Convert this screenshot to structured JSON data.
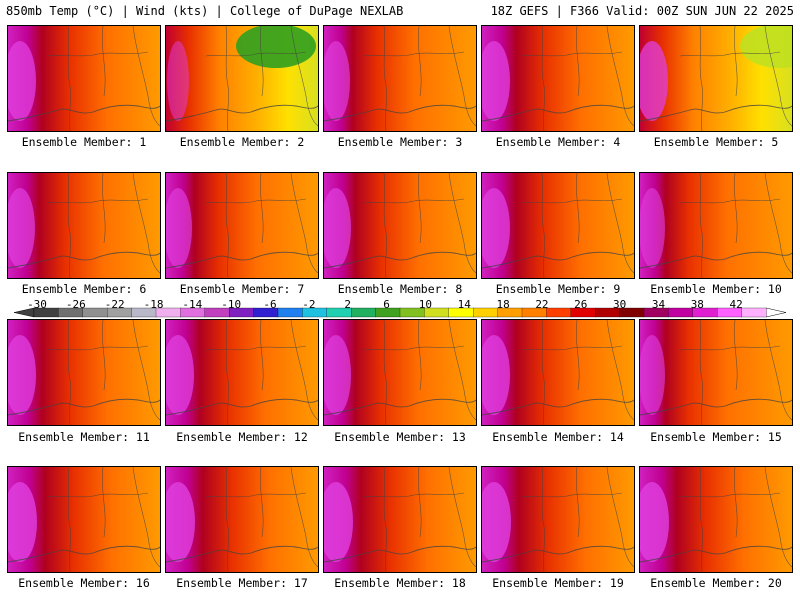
{
  "header": {
    "left": "850mb Temp (°C) | Wind (kts) | College of DuPage NEXLAB",
    "right": "18Z GEFS | F366 Valid: 00Z SUN JUN 22 2025"
  },
  "members": [
    {
      "label": "Ensemble Member: 1",
      "hot": 0.8,
      "cool": 0.0
    },
    {
      "label": "Ensemble Member: 2",
      "hot": 0.3,
      "cool": 0.9
    },
    {
      "label": "Ensemble Member: 3",
      "hot": 0.6,
      "cool": 0.0
    },
    {
      "label": "Ensemble Member: 4",
      "hot": 0.8,
      "cool": 0.0
    },
    {
      "label": "Ensemble Member: 5",
      "hot": 0.8,
      "cool": 0.7
    },
    {
      "label": "Ensemble Member: 6",
      "hot": 0.7,
      "cool": 0.0
    },
    {
      "label": "Ensemble Member: 7",
      "hot": 0.6,
      "cool": 0.0
    },
    {
      "label": "Ensemble Member: 8",
      "hot": 0.7,
      "cool": 0.0
    },
    {
      "label": "Ensemble Member: 9",
      "hot": 0.8,
      "cool": 0.0
    },
    {
      "label": "Ensemble Member: 10",
      "hot": 0.5,
      "cool": 0.0
    },
    {
      "label": "Ensemble Member: 11",
      "hot": 0.8,
      "cool": 0.0
    },
    {
      "label": "Ensemble Member: 12",
      "hot": 0.8,
      "cool": 0.0
    },
    {
      "label": "Ensemble Member: 13",
      "hot": 0.7,
      "cool": 0.0
    },
    {
      "label": "Ensemble Member: 14",
      "hot": 0.8,
      "cool": 0.0
    },
    {
      "label": "Ensemble Member: 15",
      "hot": 0.5,
      "cool": 0.0
    },
    {
      "label": "Ensemble Member: 16",
      "hot": 0.9,
      "cool": 0.3
    },
    {
      "label": "Ensemble Member: 17",
      "hot": 0.9,
      "cool": 0.0
    },
    {
      "label": "Ensemble Member: 18",
      "hot": 0.9,
      "cool": 0.0
    },
    {
      "label": "Ensemble Member: 19",
      "hot": 0.9,
      "cool": 0.0
    },
    {
      "label": "Ensemble Member: 20",
      "hot": 0.9,
      "cool": 0.0
    }
  ],
  "colorbar": {
    "ticks": [
      "-30",
      "-26",
      "-22",
      "-18",
      "-14",
      "-10",
      "-6",
      "-2",
      "2",
      "6",
      "10",
      "14",
      "18",
      "22",
      "26",
      "30",
      "34",
      "38",
      "42"
    ],
    "colors": [
      "#404040",
      "#707070",
      "#909090",
      "#a0a0a0",
      "#b8b8c8",
      "#f0b0f0",
      "#e070e0",
      "#c040c0",
      "#8020c0",
      "#3020d0",
      "#2080f0",
      "#20c0e0",
      "#20d0b0",
      "#20b060",
      "#40a020",
      "#80c020",
      "#d0e020",
      "#ffff00",
      "#ffd000",
      "#ffa000",
      "#ff8000",
      "#ff4000",
      "#e00000",
      "#b00000",
      "#800000",
      "#a00060",
      "#c000a0",
      "#e020d0",
      "#ff60ff",
      "#ffb0ff"
    ]
  }
}
